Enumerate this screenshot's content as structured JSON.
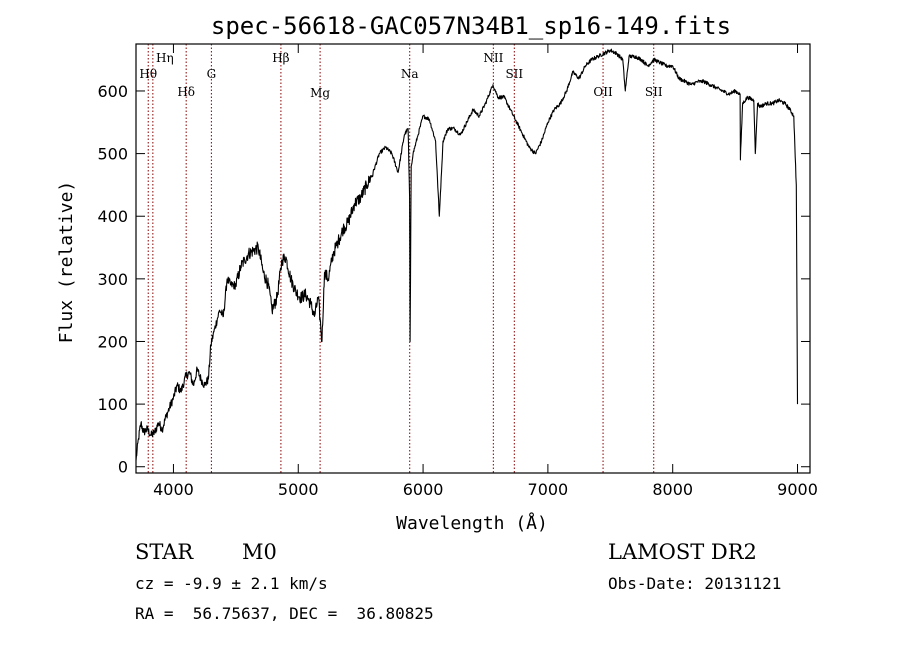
{
  "chart_data": {
    "type": "line",
    "title": "spec-56618-GAC057N34B1_sp16-149.fits",
    "xlabel": "Wavelength (Å)",
    "ylabel": "Flux (relative)",
    "xlim": [
      3700,
      9100
    ],
    "ylim": [
      -10,
      675
    ],
    "xticks": [
      4000,
      5000,
      6000,
      7000,
      8000,
      9000
    ],
    "yticks": [
      0,
      100,
      200,
      300,
      400,
      500,
      600
    ],
    "grid": false,
    "series": [
      {
        "x": [
          3700,
          3720,
          3740,
          3760,
          3790,
          3820,
          3850,
          3880,
          3910,
          3940,
          3970,
          4000,
          4030,
          4060,
          4100,
          4130,
          4160,
          4190,
          4220,
          4250,
          4280,
          4300,
          4330,
          4370,
          4400,
          4430,
          4460,
          4500,
          4540,
          4570,
          4600,
          4640,
          4680,
          4720,
          4760,
          4790,
          4830,
          4870,
          4900,
          4940,
          4980,
          5020,
          5060,
          5100,
          5130,
          5160,
          5190,
          5210,
          5240,
          5280,
          5320,
          5360,
          5400,
          5450,
          5500,
          5550,
          5600,
          5650,
          5700,
          5750,
          5800,
          5850,
          5880,
          5892,
          5896,
          5905,
          5920,
          5960,
          6000,
          6050,
          6100,
          6130,
          6160,
          6180,
          6200,
          6250,
          6300,
          6350,
          6400,
          6450,
          6500,
          6560,
          6600,
          6650,
          6700,
          6750,
          6800,
          6850,
          6900,
          6950,
          7000,
          7050,
          7100,
          7150,
          7200,
          7250,
          7300,
          7350,
          7400,
          7450,
          7500,
          7550,
          7600,
          7620,
          7650,
          7700,
          7750,
          7800,
          7850,
          7900,
          7950,
          8000,
          8050,
          8100,
          8150,
          8200,
          8250,
          8300,
          8350,
          8400,
          8450,
          8500,
          8540,
          8542,
          8560,
          8600,
          8650,
          8662,
          8680,
          8700,
          8750,
          8800,
          8850,
          8900,
          8940,
          8970,
          8990,
          9000
        ],
        "values": [
          10,
          45,
          70,
          55,
          60,
          50,
          55,
          70,
          60,
          80,
          95,
          110,
          130,
          120,
          145,
          150,
          130,
          155,
          140,
          130,
          140,
          195,
          220,
          250,
          240,
          300,
          290,
          290,
          320,
          330,
          340,
          345,
          350,
          310,
          290,
          250,
          270,
          330,
          335,
          300,
          280,
          270,
          275,
          260,
          240,
          270,
          200,
          310,
          300,
          340,
          360,
          380,
          390,
          420,
          430,
          450,
          470,
          500,
          510,
          500,
          470,
          530,
          540,
          430,
          200,
          480,
          500,
          530,
          560,
          555,
          520,
          400,
          520,
          530,
          540,
          540,
          530,
          550,
          570,
          560,
          580,
          610,
          590,
          590,
          570,
          550,
          530,
          510,
          500,
          520,
          550,
          570,
          580,
          600,
          630,
          620,
          640,
          650,
          655,
          660,
          665,
          660,
          650,
          600,
          655,
          655,
          650,
          640,
          650,
          645,
          640,
          640,
          620,
          615,
          610,
          615,
          615,
          610,
          605,
          600,
          595,
          600,
          595,
          490,
          580,
          590,
          585,
          500,
          580,
          575,
          580,
          580,
          585,
          580,
          570,
          560,
          450,
          100
        ]
      }
    ],
    "line_markers": [
      {
        "label": "Hη",
        "x": 3835
      },
      {
        "label": "Hθ",
        "x": 3798
      },
      {
        "label": "Hδ",
        "x": 4102
      },
      {
        "label": "G",
        "x": 4304
      },
      {
        "label": "Hβ",
        "x": 4861
      },
      {
        "label": "Mg",
        "x": 5175
      },
      {
        "label": "Na",
        "x": 5893
      },
      {
        "label": "NII",
        "x": 6563
      },
      {
        "label": "SII",
        "x": 6731
      },
      {
        "label": "OII",
        "x": 7442
      },
      {
        "label": "SII",
        "x": 7848
      }
    ]
  },
  "info": {
    "object_class": "STAR",
    "subclass": "M0",
    "survey": "LAMOST DR2",
    "cz": "cz = -9.9 ± 2.1 km/s",
    "obs_date": "Obs-Date: 20131121",
    "radec": "RA =  56.75637, DEC =  36.80825"
  },
  "colors": {
    "spectrum": "#000000",
    "markers": "#8b0000"
  }
}
